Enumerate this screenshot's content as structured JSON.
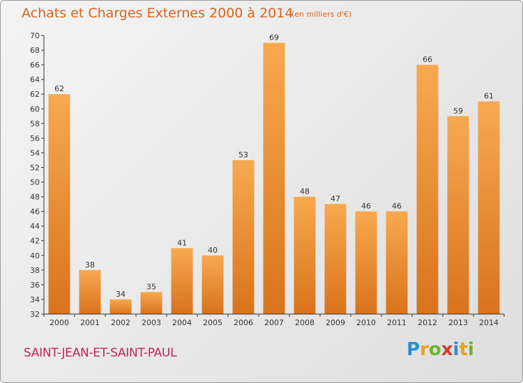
{
  "title": "Achats et Charges Externes 2000 à 2014",
  "subtitle": "(en milliers d'€)",
  "commune": "SAINT-JEAN-ET-SAINT-PAUL",
  "logo": {
    "letters": [
      {
        "char": "P",
        "color": "#2b8fd6"
      },
      {
        "char": "r",
        "color": "#e8a21a"
      },
      {
        "char": "o",
        "color": "#6cb52f"
      },
      {
        "char": "x",
        "color": "#d63a2f"
      },
      {
        "char": "i",
        "color": "#2b8fd6"
      },
      {
        "char": "t",
        "color": "#e8a21a"
      },
      {
        "char": "i",
        "color": "#6cb52f"
      }
    ]
  },
  "colors": {
    "bar_light": "#f7a94f",
    "bar_dark": "#d9731c",
    "axis": "#333333"
  },
  "chart_data": {
    "type": "bar",
    "categories": [
      "2000",
      "2001",
      "2002",
      "2003",
      "2004",
      "2005",
      "2006",
      "2007",
      "2008",
      "2009",
      "2010",
      "2011",
      "2012",
      "2013",
      "2014"
    ],
    "values": [
      62,
      38,
      34,
      35,
      41,
      40,
      53,
      69,
      48,
      47,
      46,
      46,
      66,
      59,
      61
    ],
    "ylim": [
      32,
      70
    ],
    "ytick_step": 2,
    "grid": false
  }
}
